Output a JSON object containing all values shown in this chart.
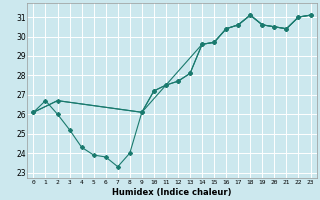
{
  "xlabel": "Humidex (Indice chaleur)",
  "bg_color": "#cce8ee",
  "grid_color": "#ffffff",
  "line_color": "#1a7a6e",
  "xlim": [
    -0.5,
    23.5
  ],
  "ylim": [
    22.7,
    31.7
  ],
  "yticks": [
    23,
    24,
    25,
    26,
    27,
    28,
    29,
    30,
    31
  ],
  "xticks": [
    0,
    1,
    2,
    3,
    4,
    5,
    6,
    7,
    8,
    9,
    10,
    11,
    12,
    13,
    14,
    15,
    16,
    17,
    18,
    19,
    20,
    21,
    22,
    23
  ],
  "line1_x": [
    0,
    1,
    2,
    3,
    4,
    5,
    6,
    7,
    8,
    9,
    10,
    11,
    12,
    13,
    14,
    15,
    16,
    17,
    18,
    19,
    20,
    21,
    22,
    23
  ],
  "line1_y": [
    26.1,
    26.7,
    26.0,
    25.2,
    24.3,
    23.9,
    23.8,
    23.3,
    24.0,
    26.1,
    27.2,
    27.5,
    27.7,
    28.1,
    29.6,
    29.7,
    30.4,
    30.6,
    31.1,
    30.6,
    30.5,
    30.4,
    31.0,
    31.1
  ],
  "line2_x": [
    0,
    2,
    9,
    10,
    11,
    12,
    13,
    14,
    15,
    16,
    17,
    18,
    19,
    20,
    21,
    22,
    23
  ],
  "line2_y": [
    26.1,
    26.7,
    26.1,
    27.2,
    27.5,
    27.7,
    28.1,
    29.6,
    29.7,
    30.4,
    30.6,
    31.1,
    30.6,
    30.5,
    30.4,
    31.0,
    31.1
  ],
  "line3_x": [
    0,
    2,
    9,
    14,
    15,
    16,
    17,
    18,
    19,
    20,
    21,
    22,
    23
  ],
  "line3_y": [
    26.1,
    26.7,
    26.1,
    29.6,
    29.7,
    30.4,
    30.6,
    31.1,
    30.6,
    30.5,
    30.4,
    31.0,
    31.1
  ]
}
